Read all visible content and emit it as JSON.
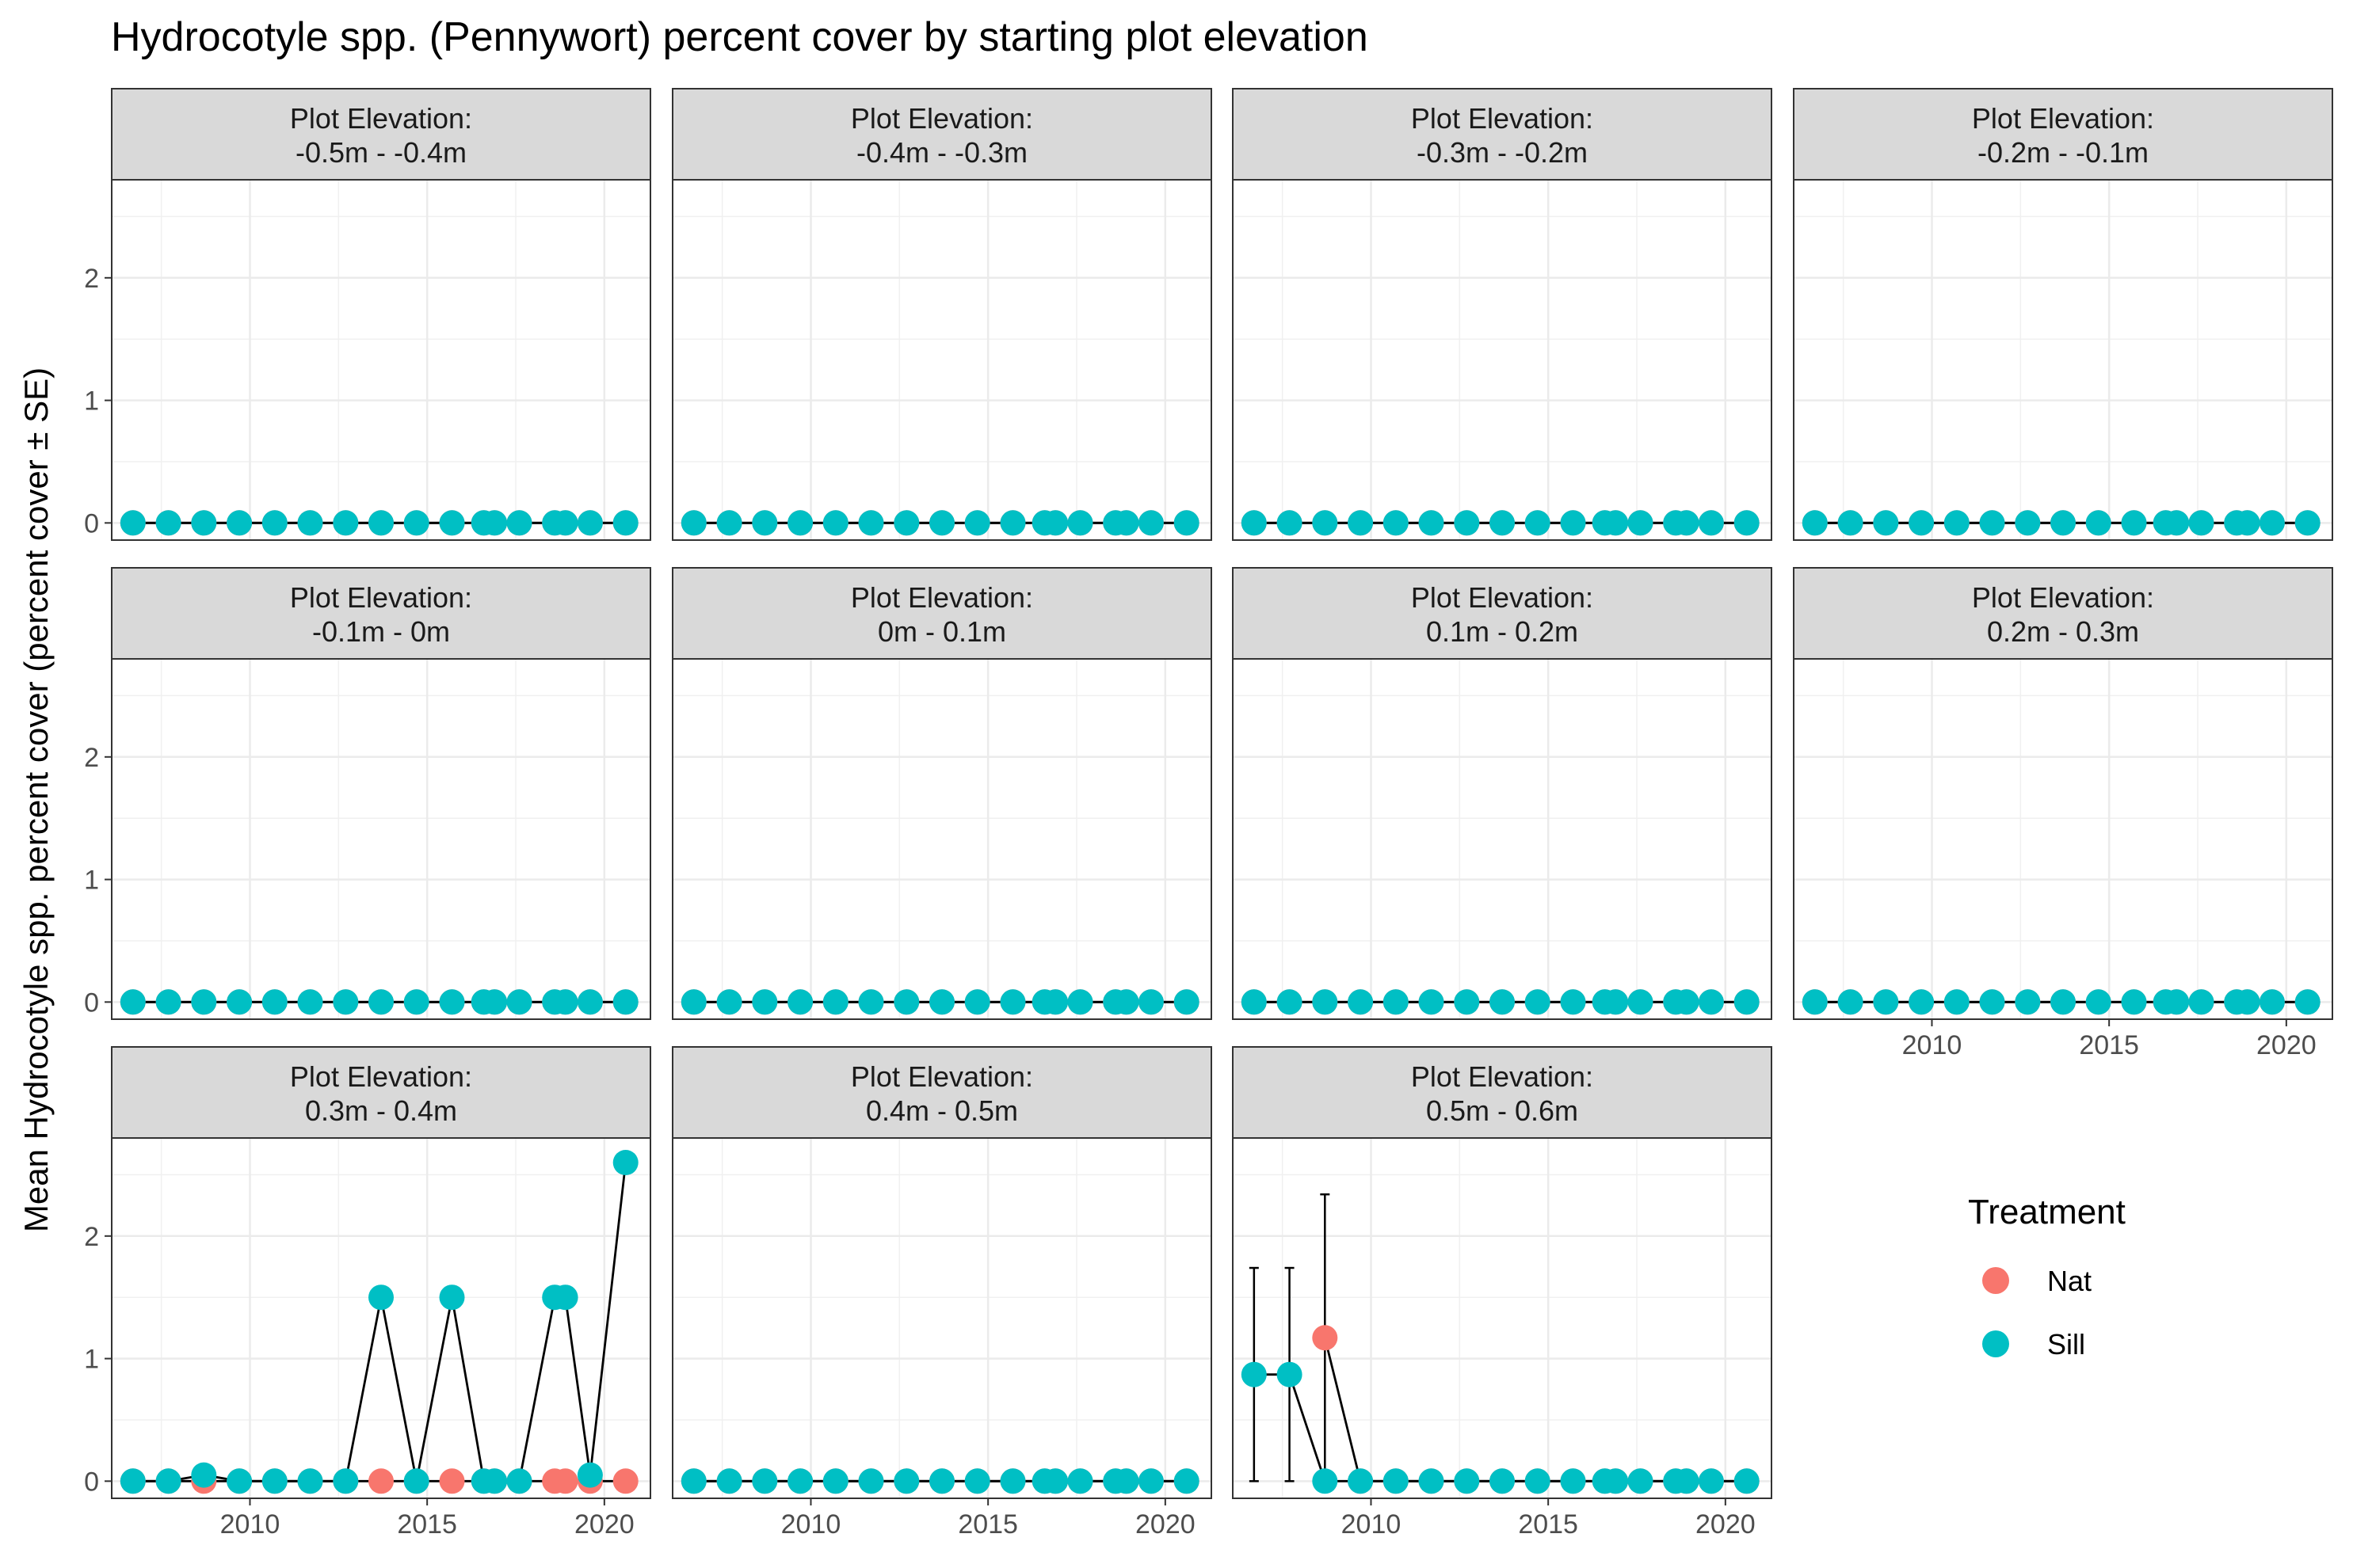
{
  "chart_data": {
    "type": "scatter",
    "title": "Hydrocotyle spp. (Pennywort) percent cover by starting plot elevation",
    "ylabel": "Mean Hydrocotyle spp. percent cover (percent cover ± SE)",
    "xlabel": "",
    "xlim": [
      2006.1,
      2021.3
    ],
    "ylim": [
      -0.14,
      2.8
    ],
    "x_ticks": [
      2010,
      2015,
      2020
    ],
    "y_ticks": [
      0,
      1,
      2
    ],
    "grid": true,
    "strip_prefix": "Plot Elevation:",
    "legend": {
      "title": "Treatment",
      "position": "right",
      "entries": [
        {
          "name": "Nat",
          "color": "#F8766D"
        },
        {
          "name": "Sill",
          "color": "#00BFC4"
        }
      ]
    },
    "dates": [
      2006.7,
      2007.7,
      2008.7,
      2009.7,
      2010.7,
      2011.7,
      2012.7,
      2013.7,
      2014.7,
      2015.7,
      2016.6,
      2016.9,
      2017.6,
      2018.6,
      2018.9,
      2019.6,
      2020.6
    ],
    "panels": [
      {
        "label": "-0.5m - -0.4m",
        "series": [
          {
            "name": "Nat",
            "values": [
              0,
              0,
              0,
              0,
              0,
              0,
              0,
              0,
              0,
              0,
              0,
              0,
              0,
              0,
              0,
              0,
              0
            ]
          },
          {
            "name": "Sill",
            "values": [
              0,
              0,
              0,
              0,
              0,
              0,
              0,
              0,
              0,
              0,
              0,
              0,
              0,
              0,
              0,
              0,
              0
            ]
          }
        ]
      },
      {
        "label": "-0.4m - -0.3m",
        "series": [
          {
            "name": "Nat",
            "values": [
              0,
              0,
              0,
              0,
              0,
              0,
              0,
              0,
              0,
              0,
              0,
              0,
              0,
              0,
              0,
              0,
              0
            ]
          },
          {
            "name": "Sill",
            "values": [
              0,
              0,
              0,
              0,
              0,
              0,
              0,
              0,
              0,
              0,
              0,
              0,
              0,
              0,
              0,
              0,
              0
            ]
          }
        ]
      },
      {
        "label": "-0.3m - -0.2m",
        "series": [
          {
            "name": "Nat",
            "values": [
              0,
              0,
              0,
              0,
              0,
              0,
              0,
              0,
              0,
              0,
              0,
              0,
              0,
              0,
              0,
              0,
              0
            ]
          },
          {
            "name": "Sill",
            "values": [
              0,
              0,
              0,
              0,
              0,
              0,
              0,
              0,
              0,
              0,
              0,
              0,
              0,
              0,
              0,
              0,
              0
            ]
          }
        ]
      },
      {
        "label": "-0.2m - -0.1m",
        "series": [
          {
            "name": "Nat",
            "values": [
              0,
              0,
              0,
              0,
              0,
              0,
              0,
              0,
              0,
              0,
              0,
              0,
              0,
              0,
              0,
              0,
              0
            ]
          },
          {
            "name": "Sill",
            "values": [
              0,
              0,
              0,
              0,
              0,
              0,
              0,
              0,
              0,
              0,
              0,
              0,
              0,
              0,
              0,
              0,
              0
            ]
          }
        ]
      },
      {
        "label": "-0.1m - 0m",
        "series": [
          {
            "name": "Nat",
            "values": [
              0,
              0,
              0,
              0,
              0,
              0,
              0,
              0,
              0,
              0,
              0,
              0,
              0,
              0,
              0,
              0,
              0
            ]
          },
          {
            "name": "Sill",
            "values": [
              0,
              0,
              0,
              0,
              0,
              0,
              0,
              0,
              0,
              0,
              0,
              0,
              0,
              0,
              0,
              0,
              0
            ]
          }
        ]
      },
      {
        "label": "0m - 0.1m",
        "series": [
          {
            "name": "Nat",
            "values": [
              0,
              0,
              0,
              0,
              0,
              0,
              0,
              0,
              0,
              0,
              0,
              0,
              0,
              0,
              0,
              0,
              0
            ]
          },
          {
            "name": "Sill",
            "values": [
              0,
              0,
              0,
              0,
              0,
              0,
              0,
              0,
              0,
              0,
              0,
              0,
              0,
              0,
              0,
              0,
              0
            ]
          }
        ]
      },
      {
        "label": "0.1m - 0.2m",
        "series": [
          {
            "name": "Nat",
            "values": [
              0,
              0,
              0,
              0,
              0,
              0,
              0,
              0,
              0,
              0,
              0,
              0,
              0,
              0,
              0,
              0,
              0
            ]
          },
          {
            "name": "Sill",
            "values": [
              0,
              0,
              0,
              0,
              0,
              0,
              0,
              0,
              0,
              0,
              0,
              0,
              0,
              0,
              0,
              0,
              0
            ]
          }
        ]
      },
      {
        "label": "0.2m - 0.3m",
        "series": [
          {
            "name": "Nat",
            "values": [
              0,
              0,
              0,
              0,
              0,
              0,
              0,
              0,
              0,
              0,
              0,
              0,
              0,
              0,
              0,
              0,
              0
            ]
          },
          {
            "name": "Sill",
            "values": [
              0,
              0,
              0,
              0,
              0,
              0,
              0,
              0,
              0,
              0,
              0,
              0,
              0,
              0,
              0,
              0,
              0
            ]
          }
        ]
      },
      {
        "label": "0.3m - 0.4m",
        "series": [
          {
            "name": "Nat",
            "values": [
              0,
              0,
              0,
              0,
              0,
              0,
              0,
              0,
              0,
              0,
              0,
              0,
              0,
              0,
              0,
              0,
              0
            ]
          },
          {
            "name": "Sill",
            "values": [
              0,
              0,
              0.05,
              0,
              0,
              0,
              0,
              1.5,
              0,
              1.5,
              0,
              0,
              0,
              1.5,
              1.5,
              0.05,
              2.6
            ]
          }
        ]
      },
      {
        "label": "0.4m - 0.5m",
        "series": [
          {
            "name": "Nat",
            "values": [
              0,
              0,
              0,
              0,
              0,
              0,
              0,
              0,
              0,
              0,
              0,
              0,
              0,
              0,
              0,
              0,
              0
            ]
          },
          {
            "name": "Sill",
            "values": [
              0,
              0,
              0,
              0,
              0,
              0,
              0,
              0,
              0,
              0,
              0,
              0,
              0,
              0,
              0,
              0,
              0
            ]
          }
        ]
      },
      {
        "label": "0.5m - 0.6m",
        "series": [
          {
            "name": "Nat",
            "values": [
              null,
              null,
              1.17,
              0,
              0,
              0,
              0,
              0,
              0,
              0,
              0,
              0,
              0,
              0,
              0,
              0,
              0
            ]
          },
          {
            "name": "Sill",
            "values": [
              0.87,
              0.87,
              0,
              0,
              0,
              0,
              0,
              0,
              0,
              0,
              0,
              0,
              0,
              0,
              0,
              0,
              0
            ]
          }
        ],
        "error_bars": [
          {
            "x": 2006.7,
            "low": 0,
            "high": 1.74
          },
          {
            "x": 2007.7,
            "low": 0,
            "high": 1.74
          },
          {
            "x": 2008.7,
            "low": 0,
            "high": 2.34
          }
        ]
      }
    ]
  }
}
